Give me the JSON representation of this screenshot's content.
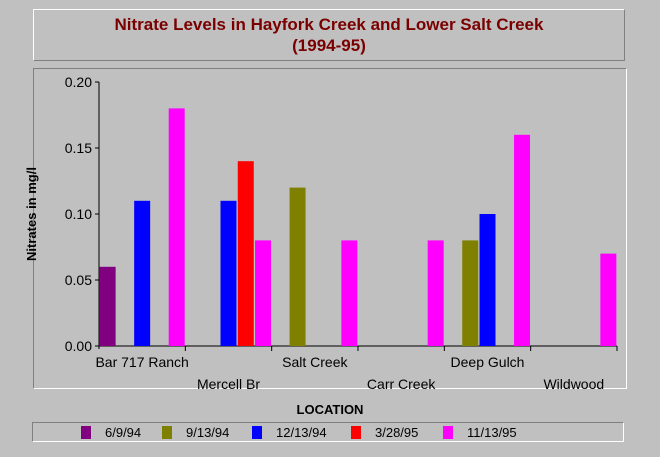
{
  "chart_data": {
    "type": "bar",
    "title": "Nitrate Levels in Hayfork Creek and Lower Salt Creek",
    "subtitle": "(1994-95)",
    "xlabel": "LOCATION",
    "ylabel": "Nitrates in mg/l",
    "ylim": [
      0,
      0.2
    ],
    "yticks": [
      "0.00",
      "0.05",
      "0.10",
      "0.15",
      "0.20"
    ],
    "grid": false,
    "legend_position": "bottom",
    "categories": [
      "Bar 717 Ranch",
      "Mercell Br",
      "Salt Creek",
      "Carr Creek",
      "Deep Gulch",
      "Wildwood"
    ],
    "series": [
      {
        "name": "6/9/94",
        "color": "#800080",
        "values": [
          0.06,
          null,
          null,
          null,
          null,
          null
        ]
      },
      {
        "name": "9/13/94",
        "color": "#808000",
        "values": [
          null,
          null,
          0.12,
          null,
          0.08,
          null
        ]
      },
      {
        "name": "12/13/94",
        "color": "#0000ff",
        "values": [
          0.11,
          0.11,
          null,
          null,
          0.1,
          null
        ]
      },
      {
        "name": "3/28/95",
        "color": "#ff0000",
        "values": [
          null,
          0.14,
          null,
          null,
          null,
          null
        ]
      },
      {
        "name": "11/13/95",
        "color": "#ff00ff",
        "values": [
          0.18,
          0.08,
          0.08,
          0.08,
          0.16,
          0.07
        ]
      }
    ]
  }
}
